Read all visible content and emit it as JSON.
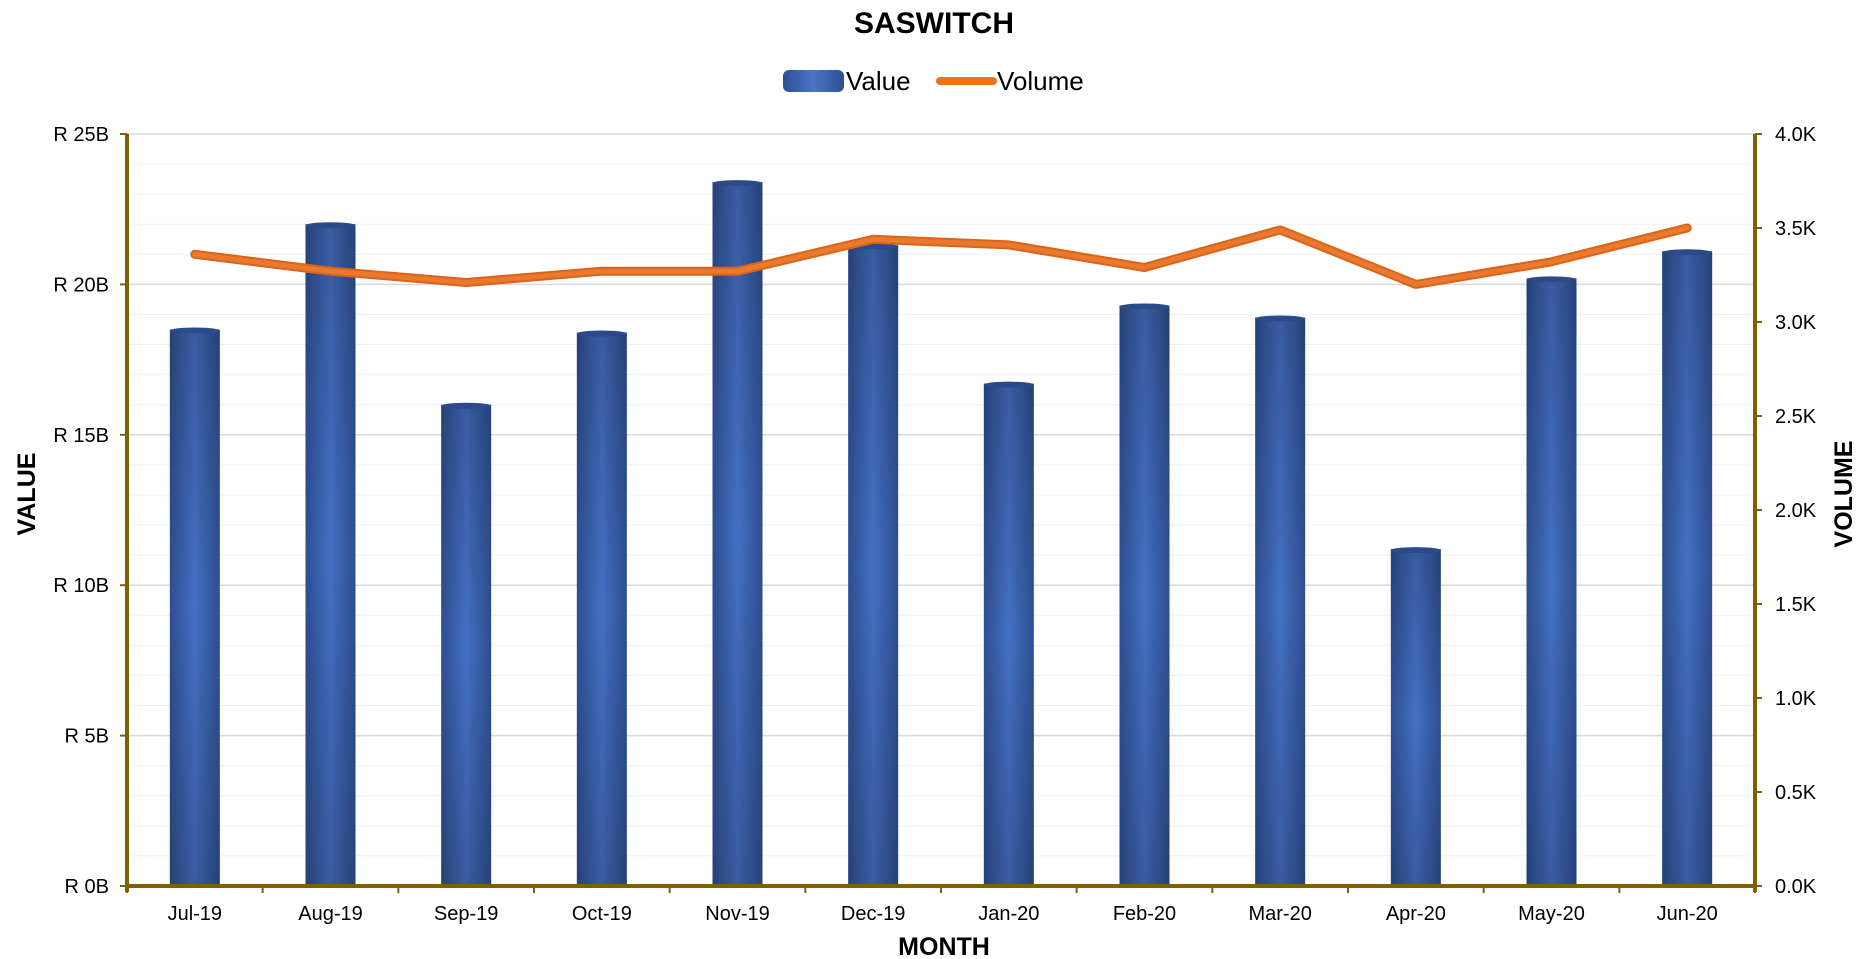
{
  "chart_data": {
    "type": "bar",
    "title": "SASWITCH",
    "xlabel": "MONTH",
    "ylabel": "VALUE",
    "y2label": "VOLUME",
    "categories": [
      "Jul-19",
      "Aug-19",
      "Sep-19",
      "Oct-19",
      "Nov-19",
      "Dec-19",
      "Jan-20",
      "Feb-20",
      "Mar-20",
      "Apr-20",
      "May-20",
      "Jun-20"
    ],
    "series": [
      {
        "name": "Value",
        "type": "bar",
        "axis": "left",
        "unit": "B",
        "color": "#3a62ad",
        "values": [
          18.5,
          22.0,
          16.0,
          18.4,
          23.4,
          21.3,
          16.7,
          19.3,
          18.9,
          11.2,
          20.2,
          21.1
        ]
      },
      {
        "name": "Volume",
        "type": "line",
        "axis": "right",
        "unit": "K",
        "color": "#e8741e",
        "values": [
          3.36,
          3.27,
          3.21,
          3.27,
          3.27,
          3.44,
          3.41,
          3.29,
          3.49,
          3.2,
          3.32,
          3.5
        ]
      }
    ],
    "ylim": [
      0,
      25
    ],
    "y2lim": [
      0,
      4
    ],
    "y_ticks": [
      "R 0B",
      "R 5B",
      "R 10B",
      "R 15B",
      "R 20B",
      "R 25B"
    ],
    "y2_ticks": [
      "0.0K",
      "0.5K",
      "1.0K",
      "1.5K",
      "2.0K",
      "2.5K",
      "3.0K",
      "3.5K",
      "4.0K"
    ],
    "grid": true,
    "legend_position": "top-center",
    "axis_color": "#7f6000"
  }
}
